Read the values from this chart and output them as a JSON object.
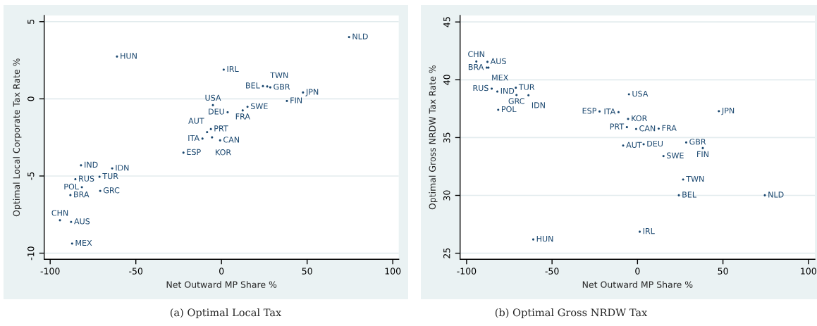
{
  "chart_data": [
    {
      "type": "scatter",
      "title": "(a) Optimal Local Tax",
      "xlabel": "Net Outward MP Share %",
      "ylabel": "Optimal Local Corporate Tax Rate %",
      "color": "#1a476f",
      "marker": "circle",
      "grid": "y",
      "xlim": [
        -103.5,
        103.5
      ],
      "ylim": [
        -10.4,
        5.4
      ],
      "xticks": [
        -100,
        -50,
        0,
        50,
        100
      ],
      "yticks": [
        -10,
        -5,
        0,
        5
      ],
      "x": [
        -94.3,
        -87.8,
        -88.2,
        -87.2,
        -85.3,
        -82.0,
        -81.5,
        -71.2,
        -70.8,
        -63.8,
        -61.0,
        -22.2,
        -11.1,
        -8.4,
        -6.2,
        -5.5,
        -5.0,
        -0.8,
        1.3,
        3.6,
        12.4,
        15.2,
        24.2,
        26.7,
        28.5,
        38.2,
        47.6,
        74.5
      ],
      "values": [
        -7.87,
        -7.98,
        -6.24,
        -9.38,
        -5.21,
        -4.31,
        -5.73,
        -5.05,
        -5.97,
        -4.51,
        2.74,
        -3.49,
        -2.58,
        -2.16,
        -1.96,
        -2.5,
        -0.41,
        -2.69,
        1.89,
        -0.87,
        -0.75,
        -0.52,
        0.82,
        0.8,
        0.74,
        -0.14,
        0.41,
        4.0
      ],
      "value_labels": [
        "CHN",
        "AUS",
        "BRA",
        "MEX",
        "RUS",
        "IND",
        "POL",
        "TUR",
        "GRC",
        "IDN",
        "HUN",
        "ESP",
        "ITA",
        "AUT",
        "PRT",
        "KOR",
        "USA",
        "CAN",
        "IRL",
        "DEU",
        "FRA",
        "SWE",
        "BEL",
        "TWN",
        "GBR",
        "FIN",
        "JPN",
        "NLD"
      ]
    },
    {
      "type": "scatter",
      "title": "(b) Optimal Gross NRDW Tax",
      "xlabel": "Net Outward MP Share %",
      "ylabel": "Optimal Gross NRDW Tax Rate %",
      "color": "#1a476f",
      "marker": "circle",
      "grid": "y",
      "xlim": [
        -103.8,
        103.8
      ],
      "ylim": [
        24.47,
        45.56
      ],
      "xticks": [
        -100,
        -50,
        0,
        50,
        100
      ],
      "yticks": [
        25,
        30,
        35,
        40,
        45
      ],
      "x": [
        -94.3,
        -87.8,
        -88.2,
        -87.2,
        -85.3,
        -82.0,
        -81.5,
        -71.2,
        -70.8,
        -63.8,
        -61.0,
        -22.2,
        -11.1,
        -8.4,
        -6.2,
        -5.5,
        -5.0,
        -0.8,
        1.3,
        3.6,
        12.4,
        15.2,
        24.2,
        26.7,
        28.5,
        38.2,
        47.6,
        74.5
      ],
      "values": [
        41.58,
        41.55,
        41.05,
        41.05,
        39.23,
        38.98,
        37.4,
        39.31,
        38.68,
        38.66,
        26.19,
        37.26,
        37.2,
        34.31,
        35.9,
        36.61,
        38.74,
        35.74,
        26.86,
        34.42,
        35.77,
        33.4,
        30.01,
        31.37,
        34.58,
        34.09,
        37.28,
        30.01
      ],
      "value_labels": [
        "CHN",
        "AUS",
        "BRA",
        "MEX",
        "RUS",
        "IND",
        "POL",
        "TUR",
        "GRC",
        "IDN",
        "HUN",
        "ESP",
        "ITA",
        "AUT",
        "PRT",
        "KOR",
        "USA",
        "CAN",
        "IRL",
        "DEU",
        "FRA",
        "SWE",
        "BEL",
        "TWN",
        "GBR",
        "FIN",
        "JPN",
        "NLD"
      ]
    }
  ]
}
